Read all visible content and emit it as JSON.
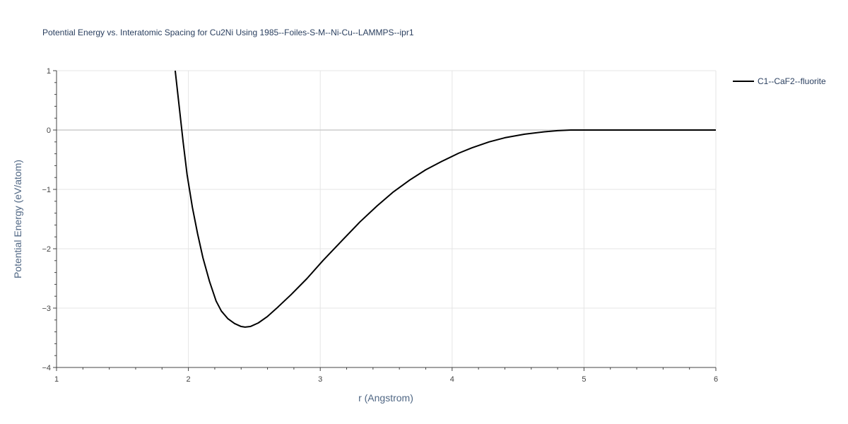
{
  "chart_data": {
    "type": "line",
    "title": "Potential Energy vs. Interatomic Spacing for Cu2Ni Using 1985--Foiles-S-M--Ni-Cu--LAMMPS--ipr1",
    "xlabel": "r (Angstrom)",
    "ylabel": "Potential Energy (eV/atom)",
    "xlim": [
      1,
      6
    ],
    "ylim": [
      -4,
      1
    ],
    "xticks": [
      "1",
      "2",
      "3",
      "4",
      "5",
      "6"
    ],
    "yticks": [
      "1",
      "0",
      "−1",
      "−2",
      "−3",
      "−4"
    ],
    "grid": true,
    "legend_position": "top-right",
    "series": [
      {
        "name": "C1--CaF2--fluorite",
        "color": "#000000",
        "x": [
          1.9,
          1.93,
          1.96,
          1.99,
          2.03,
          2.07,
          2.11,
          2.16,
          2.21,
          2.25,
          2.3,
          2.35,
          2.4,
          2.43,
          2.47,
          2.53,
          2.6,
          2.68,
          2.78,
          2.9,
          3.02,
          3.17,
          3.3,
          3.43,
          3.55,
          3.68,
          3.8,
          3.92,
          4.05,
          4.15,
          4.28,
          4.4,
          4.55,
          4.7,
          4.8,
          4.9,
          5.0,
          5.2,
          5.5,
          5.8,
          6.0
        ],
        "y": [
          1.0,
          0.4,
          -0.2,
          -0.75,
          -1.3,
          -1.75,
          -2.15,
          -2.55,
          -2.88,
          -3.05,
          -3.18,
          -3.26,
          -3.31,
          -3.32,
          -3.31,
          -3.25,
          -3.14,
          -2.98,
          -2.77,
          -2.5,
          -2.2,
          -1.85,
          -1.55,
          -1.28,
          -1.05,
          -0.84,
          -0.67,
          -0.53,
          -0.39,
          -0.3,
          -0.2,
          -0.13,
          -0.07,
          -0.03,
          -0.01,
          0.0,
          0.0,
          0.0,
          0.0,
          0.0,
          0.0
        ]
      }
    ]
  }
}
